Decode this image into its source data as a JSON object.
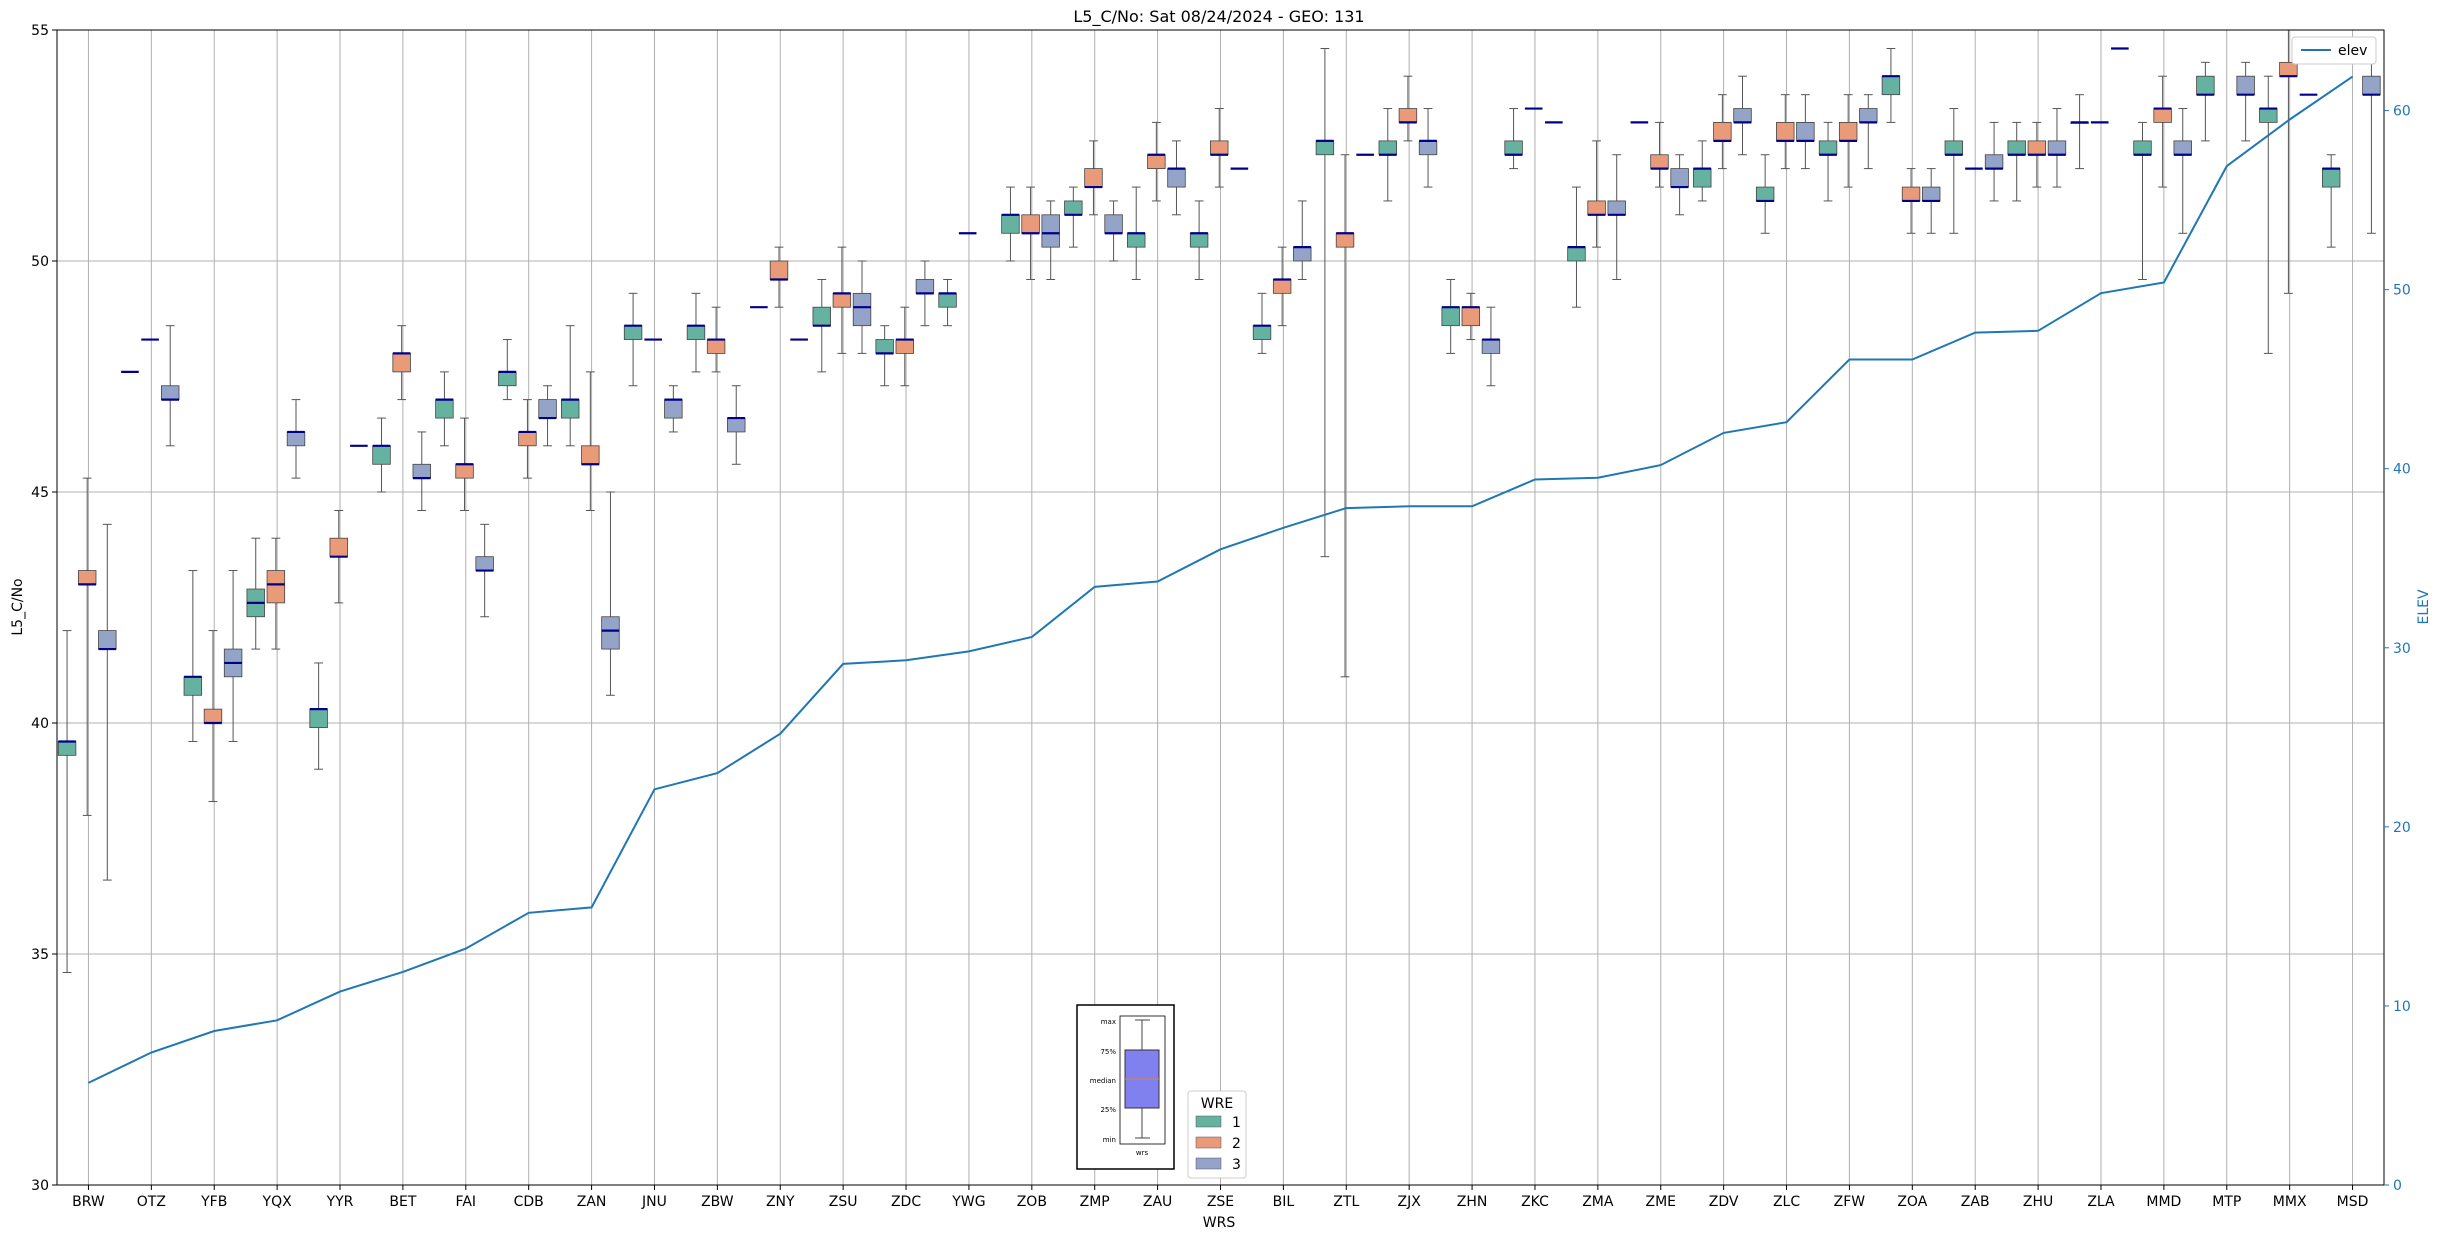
{
  "chart_data": {
    "type": "box",
    "title": "L5_C/No: Sat 08/24/2024 - GEO: 131",
    "xlabel": "WRS",
    "ylabel": "L5_C/No",
    "y2label": "ELEV",
    "ylim": [
      30,
      55
    ],
    "y2lim": [
      0,
      64.5
    ],
    "yticks": [
      30,
      35,
      40,
      45,
      50,
      55
    ],
    "y2ticks": [
      0,
      10,
      20,
      30,
      40,
      50,
      60
    ],
    "grid": true,
    "categories": [
      "BRW",
      "OTZ",
      "YFB",
      "YQX",
      "YYR",
      "BET",
      "FAI",
      "CDB",
      "ZAN",
      "JNU",
      "ZBW",
      "ZNY",
      "ZSU",
      "ZDC",
      "YWG",
      "ZOB",
      "ZMP",
      "ZAU",
      "ZSE",
      "BIL",
      "ZTL",
      "ZJX",
      "ZHN",
      "ZKC",
      "ZMA",
      "ZME",
      "ZDV",
      "ZLC",
      "ZFW",
      "ZOA",
      "ZAB",
      "ZHU",
      "ZLA",
      "MMD",
      "MTP",
      "MMX",
      "MSD"
    ],
    "legend": {
      "title": "WRE",
      "placement": "lower-center",
      "entries": [
        {
          "label": "1",
          "color": "#66b2a0"
        },
        {
          "label": "2",
          "color": "#e99a79"
        },
        {
          "label": "3",
          "color": "#94a3c8"
        }
      ]
    },
    "legend_elev": {
      "label": "elev",
      "placement": "top-right",
      "color": "#1f77b4"
    },
    "inset_key": {
      "labels": [
        "max",
        "75%",
        "median",
        "25%",
        "min"
      ],
      "xlabel": "wrs",
      "box_color": "#8080ee"
    },
    "colors": {
      "wre1": "#66b2a0",
      "wre2": "#e99a79",
      "wre3": "#94a3c8",
      "median": "#00008b",
      "elev": "#1f77b4",
      "grid": "#b0b0b0"
    },
    "elev": [
      5.7,
      7.4,
      8.6,
      9.2,
      10.8,
      11.9,
      13.2,
      15.2,
      15.5,
      22.1,
      23.0,
      25.2,
      29.1,
      29.3,
      29.8,
      30.6,
      33.4,
      33.7,
      35.5,
      36.7,
      37.8,
      37.9,
      37.9,
      39.4,
      39.5,
      40.2,
      42.0,
      42.6,
      46.1,
      46.1,
      47.6,
      47.7,
      49.8,
      50.4,
      56.9,
      59.5,
      61.9
    ],
    "series": [
      {
        "name": "1",
        "boxes": [
          [
            "BRW",
            34.6,
            39.3,
            39.6,
            39.6,
            42.0
          ],
          [
            "YFB",
            39.6,
            40.6,
            41.0,
            41.0,
            43.3
          ],
          [
            "YQX",
            41.6,
            42.3,
            42.6,
            42.9,
            44.0
          ],
          [
            "YYR",
            39.0,
            39.9,
            40.3,
            40.3,
            41.3
          ],
          [
            "BET",
            45.0,
            45.6,
            46.0,
            46.0,
            46.6
          ],
          [
            "FAI",
            46.0,
            46.6,
            47.0,
            47.0,
            47.6
          ],
          [
            "CDB",
            47.0,
            47.3,
            47.6,
            47.6,
            48.3
          ],
          [
            "ZAN",
            46.0,
            46.6,
            47.0,
            47.0,
            48.6
          ],
          [
            "JNU",
            47.3,
            48.3,
            48.6,
            48.6,
            49.3
          ],
          [
            "ZBW",
            47.6,
            48.3,
            48.6,
            48.6,
            49.3
          ],
          [
            "ZSU",
            47.6,
            48.6,
            48.6,
            49.0,
            49.6
          ],
          [
            "ZDC",
            47.3,
            48.0,
            48.0,
            48.3,
            48.6
          ],
          [
            "YWG",
            48.6,
            49.0,
            49.3,
            49.3,
            49.6
          ],
          [
            "ZOB",
            50.0,
            50.6,
            51.0,
            51.0,
            51.6
          ],
          [
            "ZMP",
            50.3,
            51.0,
            51.0,
            51.3,
            51.6
          ],
          [
            "ZAU",
            49.6,
            50.3,
            50.6,
            50.6,
            51.6
          ],
          [
            "ZSE",
            49.6,
            50.3,
            50.6,
            50.6,
            51.3
          ],
          [
            "BIL",
            48.0,
            48.3,
            48.6,
            48.6,
            49.3
          ],
          [
            "ZTL",
            43.6,
            52.3,
            52.6,
            52.6,
            54.6
          ],
          [
            "ZJX",
            51.3,
            52.3,
            52.3,
            52.6,
            53.3
          ],
          [
            "ZHN",
            48.0,
            48.6,
            49.0,
            49.0,
            49.6
          ],
          [
            "ZKC",
            52.0,
            52.3,
            52.3,
            52.6,
            53.3
          ],
          [
            "ZMA",
            49.0,
            50.0,
            50.3,
            50.3,
            51.6
          ],
          [
            "ZDV",
            51.3,
            51.6,
            52.0,
            52.0,
            52.6
          ],
          [
            "ZLC",
            50.6,
            51.3,
            51.3,
            51.6,
            52.3
          ],
          [
            "ZFW",
            51.3,
            52.3,
            52.3,
            52.6,
            53.0
          ],
          [
            "ZOA",
            53.0,
            53.6,
            54.0,
            54.0,
            54.6
          ],
          [
            "ZAB",
            50.6,
            52.3,
            52.3,
            52.6,
            53.3
          ],
          [
            "ZHU",
            51.3,
            52.3,
            52.3,
            52.6,
            53.0
          ],
          [
            "ZLA",
            52.0,
            53.0,
            53.0,
            53.0,
            53.6
          ],
          [
            "MMD",
            49.6,
            52.3,
            52.3,
            52.6,
            53.0
          ],
          [
            "MTP",
            52.6,
            53.6,
            53.6,
            54.0,
            54.3
          ],
          [
            "MMX",
            48.0,
            53.0,
            53.3,
            53.3,
            54.0
          ],
          [
            "MSD",
            50.3,
            51.6,
            52.0,
            52.0,
            52.3
          ]
        ]
      },
      {
        "name": "2",
        "boxes": [
          [
            "BRW",
            38.0,
            43.0,
            43.0,
            43.3,
            45.3
          ],
          [
            "YFB",
            38.3,
            40.0,
            40.0,
            40.3,
            42.0
          ],
          [
            "YQX",
            41.6,
            42.6,
            43.0,
            43.3,
            44.0
          ],
          [
            "YYR",
            42.6,
            43.6,
            43.6,
            44.0,
            44.6
          ],
          [
            "BET",
            47.0,
            47.6,
            48.0,
            48.0,
            48.6
          ],
          [
            "FAI",
            44.6,
            45.3,
            45.6,
            45.6,
            46.6
          ],
          [
            "CDB",
            45.3,
            46.0,
            46.3,
            46.3,
            47.0
          ],
          [
            "ZAN",
            44.6,
            45.6,
            45.6,
            46.0,
            47.6
          ],
          [
            "ZBW",
            47.6,
            48.0,
            48.3,
            48.3,
            49.0
          ],
          [
            "ZNY",
            49.0,
            49.6,
            49.6,
            50.0,
            50.3
          ],
          [
            "ZSU",
            48.0,
            49.0,
            49.3,
            49.3,
            50.3
          ],
          [
            "ZDC",
            47.3,
            48.0,
            48.3,
            48.3,
            49.0
          ],
          [
            "ZOB",
            49.6,
            50.6,
            50.6,
            51.0,
            51.6
          ],
          [
            "ZMP",
            51.0,
            51.6,
            51.6,
            52.0,
            52.6
          ],
          [
            "ZAU",
            51.3,
            52.0,
            52.3,
            52.3,
            53.0
          ],
          [
            "ZSE",
            51.6,
            52.3,
            52.3,
            52.6,
            53.3
          ],
          [
            "BIL",
            48.6,
            49.3,
            49.6,
            49.6,
            50.3
          ],
          [
            "ZTL",
            41.0,
            50.3,
            50.6,
            50.6,
            52.3
          ],
          [
            "ZJX",
            52.6,
            53.0,
            53.0,
            53.3,
            54.0
          ],
          [
            "ZHN",
            48.3,
            48.6,
            49.0,
            49.0,
            49.3
          ],
          [
            "ZMA",
            50.3,
            51.0,
            51.0,
            51.3,
            52.6
          ],
          [
            "ZME",
            51.6,
            52.0,
            52.0,
            52.3,
            53.0
          ],
          [
            "ZDV",
            52.0,
            52.6,
            52.6,
            53.0,
            53.6
          ],
          [
            "ZLC",
            52.0,
            52.6,
            52.6,
            53.0,
            53.6
          ],
          [
            "ZFW",
            51.6,
            52.6,
            52.6,
            53.0,
            53.6
          ],
          [
            "ZOA",
            50.6,
            51.3,
            51.3,
            51.6,
            52.0
          ],
          [
            "ZHU",
            51.6,
            52.3,
            52.3,
            52.6,
            53.0
          ],
          [
            "MMD",
            51.6,
            53.0,
            53.3,
            53.3,
            54.0
          ],
          [
            "MMX",
            49.3,
            54.0,
            54.0,
            54.3,
            55.0
          ]
        ]
      },
      {
        "name": "3",
        "boxes": [
          [
            "BRW",
            36.6,
            41.6,
            41.6,
            42.0,
            44.3
          ],
          [
            "OTZ",
            46.0,
            47.0,
            47.0,
            47.3,
            48.6
          ],
          [
            "YFB",
            39.6,
            41.0,
            41.3,
            41.6,
            43.3
          ],
          [
            "YQX",
            45.3,
            46.0,
            46.3,
            46.3,
            47.0
          ],
          [
            "BET",
            44.6,
            45.3,
            45.3,
            45.6,
            46.3
          ],
          [
            "FAI",
            42.3,
            43.3,
            43.3,
            43.6,
            44.3
          ],
          [
            "CDB",
            46.0,
            46.6,
            46.6,
            47.0,
            47.3
          ],
          [
            "ZAN",
            40.6,
            41.6,
            42.0,
            42.3,
            45.0
          ],
          [
            "JNU",
            46.3,
            46.6,
            47.0,
            47.0,
            47.3
          ],
          [
            "ZBW",
            45.6,
            46.3,
            46.6,
            46.6,
            47.3
          ],
          [
            "ZSU",
            48.0,
            48.6,
            49.0,
            49.3,
            50.0
          ],
          [
            "ZDC",
            48.6,
            49.3,
            49.3,
            49.6,
            50.0
          ],
          [
            "ZOB",
            49.6,
            50.3,
            50.6,
            51.0,
            51.3
          ],
          [
            "ZMP",
            50.0,
            50.6,
            50.6,
            51.0,
            51.3
          ],
          [
            "ZAU",
            51.0,
            51.6,
            52.0,
            52.0,
            52.6
          ],
          [
            "BIL",
            49.6,
            50.0,
            50.3,
            50.3,
            51.3
          ],
          [
            "ZJX",
            51.6,
            52.3,
            52.6,
            52.6,
            53.3
          ],
          [
            "ZHN",
            47.3,
            48.0,
            48.3,
            48.3,
            49.0
          ],
          [
            "ZMA",
            49.6,
            51.0,
            51.0,
            51.3,
            52.3
          ],
          [
            "ZME",
            51.0,
            51.6,
            51.6,
            52.0,
            52.3
          ],
          [
            "ZDV",
            52.3,
            53.0,
            53.0,
            53.3,
            54.0
          ],
          [
            "ZLC",
            52.0,
            52.6,
            52.6,
            53.0,
            53.6
          ],
          [
            "ZFW",
            52.0,
            53.0,
            53.0,
            53.3,
            53.6
          ],
          [
            "ZOA",
            50.6,
            51.3,
            51.3,
            51.6,
            52.0
          ],
          [
            "ZAB",
            51.3,
            52.0,
            52.0,
            52.3,
            53.0
          ],
          [
            "ZHU",
            51.6,
            52.3,
            52.3,
            52.6,
            53.3
          ],
          [
            "MMD",
            50.6,
            52.3,
            52.3,
            52.6,
            53.3
          ],
          [
            "MTP",
            52.6,
            53.6,
            53.6,
            54.0,
            54.3
          ],
          [
            "MSD",
            50.6,
            53.6,
            53.6,
            54.0,
            54.6
          ]
        ]
      }
    ],
    "median_only": [
      [
        "OTZ",
        1,
        47.6
      ],
      [
        "OTZ",
        2,
        48.3
      ],
      [
        "YYR",
        3,
        46.0
      ],
      [
        "JNU",
        2,
        48.3
      ],
      [
        "ZNY",
        1,
        49.0
      ],
      [
        "ZNY",
        3,
        48.3
      ],
      [
        "YWG",
        2,
        50.6
      ],
      [
        "ZSE",
        3,
        52.0
      ],
      [
        "ZTL",
        3,
        52.3
      ],
      [
        "ZKC",
        2,
        53.3
      ],
      [
        "ZKC",
        3,
        53.0
      ],
      [
        "ZME",
        1,
        53.0
      ],
      [
        "ZAB",
        2,
        52.0
      ],
      [
        "ZLA",
        2,
        53.0
      ],
      [
        "ZLA",
        3,
        54.6
      ],
      [
        "MMX",
        3,
        53.6
      ]
    ]
  }
}
